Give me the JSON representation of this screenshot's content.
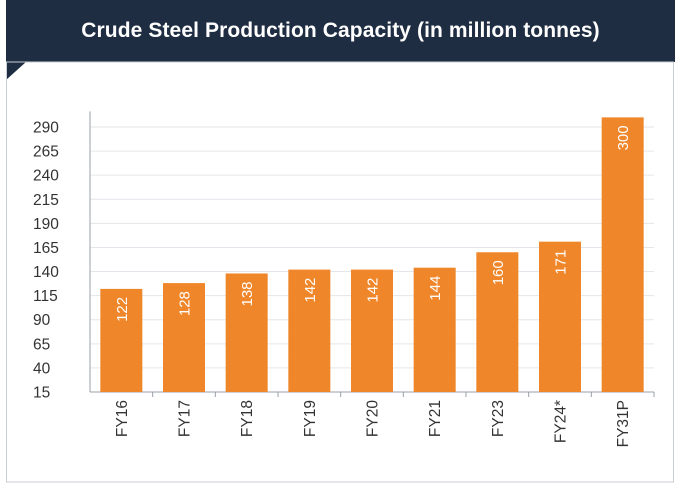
{
  "header": {
    "title": "Crude Steel Production Capacity (in million tonnes)"
  },
  "colors": {
    "bar": "#f0862a",
    "header": "#1f2d43",
    "grid": "#e3e6ea"
  },
  "chart_data": {
    "type": "bar",
    "title": "Crude Steel Production Capacity (in million tonnes)",
    "xlabel": "",
    "ylabel": "",
    "categories": [
      "FY16",
      "FY17",
      "FY18",
      "FY19",
      "FY20",
      "FY21",
      "FY23",
      "FY24*",
      "FY31P"
    ],
    "values": [
      122,
      128,
      138,
      142,
      142,
      144,
      160,
      171,
      300
    ],
    "value_labels": [
      "122",
      "128",
      "138",
      "142",
      "142",
      "144",
      "160",
      "171",
      "300"
    ],
    "ylim": [
      15,
      300
    ],
    "yticks": [
      15,
      40,
      65,
      90,
      115,
      140,
      165,
      190,
      215,
      240,
      265,
      290
    ],
    "ytick_labels": [
      "15",
      "40",
      "65",
      "90",
      "115",
      "140",
      "165",
      "190",
      "215",
      "240",
      "265",
      "290"
    ],
    "grid": true,
    "legend": "none"
  }
}
